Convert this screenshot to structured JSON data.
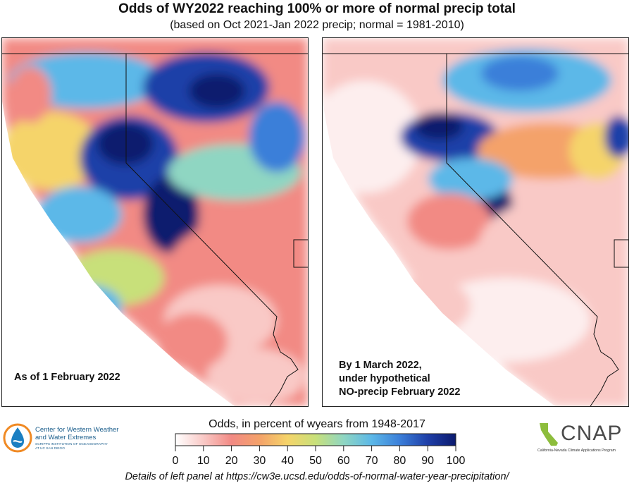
{
  "title": "Odds of WY2022 reaching 100% or more of normal precip total",
  "subtitle": "(based on Oct 2021-Jan 2022 precip; normal = 1981-2010)",
  "panels": [
    {
      "label_lines": [
        "As of 1 February 2022"
      ]
    },
    {
      "label_lines": [
        "By 1 March 2022,",
        "under hypothetical",
        "NO-precip February 2022"
      ]
    }
  ],
  "colorbar": {
    "title": "Odds, in percent of wyears from 1948-2017",
    "ticks": [
      "0",
      "10",
      "20",
      "30",
      "40",
      "50",
      "60",
      "70",
      "80",
      "90",
      "100"
    ],
    "colors": [
      "#ffffff",
      "#f9c9c6",
      "#f28a84",
      "#f4a26a",
      "#f5d46a",
      "#c8e07a",
      "#8fd6c2",
      "#5cb8e8",
      "#3b7fd9",
      "#1f3fa8",
      "#0b1a6e"
    ]
  },
  "logo_left": {
    "icon": "water-drop-logo-icon",
    "name_line1": "Center for Western Weather",
    "name_line2": "and Water Extremes",
    "small_line1": "SCRIPPS INSTITUTION OF OCEANOGRAPHY",
    "small_line2": "AT UC SAN DIEGO"
  },
  "logo_right": {
    "icon": "california-outline-logo-icon",
    "name": "CNAP",
    "tagline": "California-Nevada Climate Applications Program"
  },
  "footer": "Details of left panel at https://cw3e.ucsd.edu/odds-of-normal-water-year-precipitation/"
}
